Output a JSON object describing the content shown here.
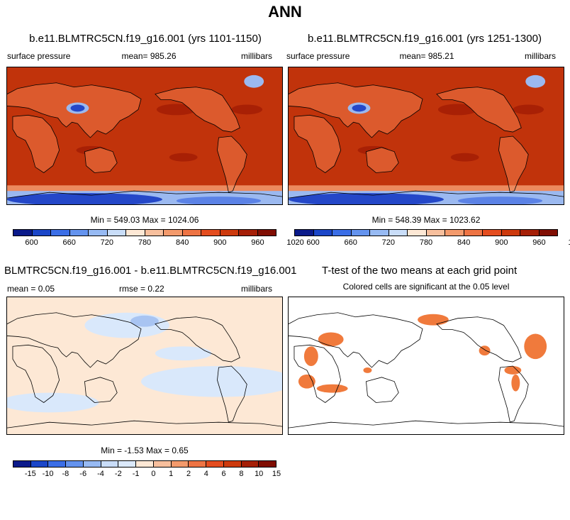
{
  "figure": {
    "title": "ANN"
  },
  "panels": {
    "top_left": {
      "title": "b.e11.BLMTRC5CN.f19_g16.001 (yrs 1101-1150)",
      "variable": "surface pressure",
      "mean_text": "mean= 985.26",
      "units": "millibars",
      "minmax": "Min = 549.03 Max = 1024.06"
    },
    "top_right": {
      "title": "b.e11.BLMTRC5CN.f19_g16.001 (yrs 1251-1300)",
      "variable": "surface pressure",
      "mean_text": "mean= 985.21",
      "units": "millibars",
      "minmax": "Min = 548.39 Max = 1023.62"
    },
    "bottom_left": {
      "title": "BLMTRC5CN.f19_g16.001 - b.e11.BLMTRC5CN.f19_g16.001",
      "mean_text": "mean =   0.05",
      "rmse_text": "rmse =   0.22",
      "units": "millibars",
      "minmax": "Min =  -1.53 Max =   0.65"
    },
    "bottom_right": {
      "title": "T-test of the two means at each grid point",
      "subtitle": "Colored cells are significant at the 0.05 level"
    }
  },
  "colorbars": {
    "pressure": {
      "colors": [
        "#0b1a8a",
        "#1b46c8",
        "#3b6ee6",
        "#6493ee",
        "#97baf3",
        "#c9ddf8",
        "#fde8d5",
        "#f7bf9d",
        "#f39a6c",
        "#ee7444",
        "#e44d1f",
        "#cd3a0d",
        "#a51f07",
        "#800e03"
      ],
      "labels": [
        "600",
        "660",
        "720",
        "780",
        "840",
        "900",
        "960",
        "1020"
      ]
    },
    "difference": {
      "colors": [
        "#0b1a8a",
        "#1b46c8",
        "#3b6ee6",
        "#6493ee",
        "#97baf3",
        "#c9ddf8",
        "#dbe9fb",
        "#fde8d5",
        "#f7bf9d",
        "#f39a6c",
        "#ee7444",
        "#e44d1f",
        "#cd3a0d",
        "#a51f07",
        "#800e03"
      ],
      "labels": [
        "-15",
        "-10",
        "-8",
        "-6",
        "-4",
        "-2",
        "-1",
        "0",
        "1",
        "2",
        "4",
        "6",
        "8",
        "10",
        "15"
      ]
    }
  },
  "colors": {
    "pressure_field": "#c1330b",
    "pressure_high": "#a82005",
    "pressure_land": "#dc5a2d",
    "pressure_low": "#2447c8",
    "diff_positive": "#fde8d5",
    "diff_negative": "#d9e8fb",
    "diff_negative_strong": "#a8c4f2",
    "significant": "#f07a3c"
  }
}
